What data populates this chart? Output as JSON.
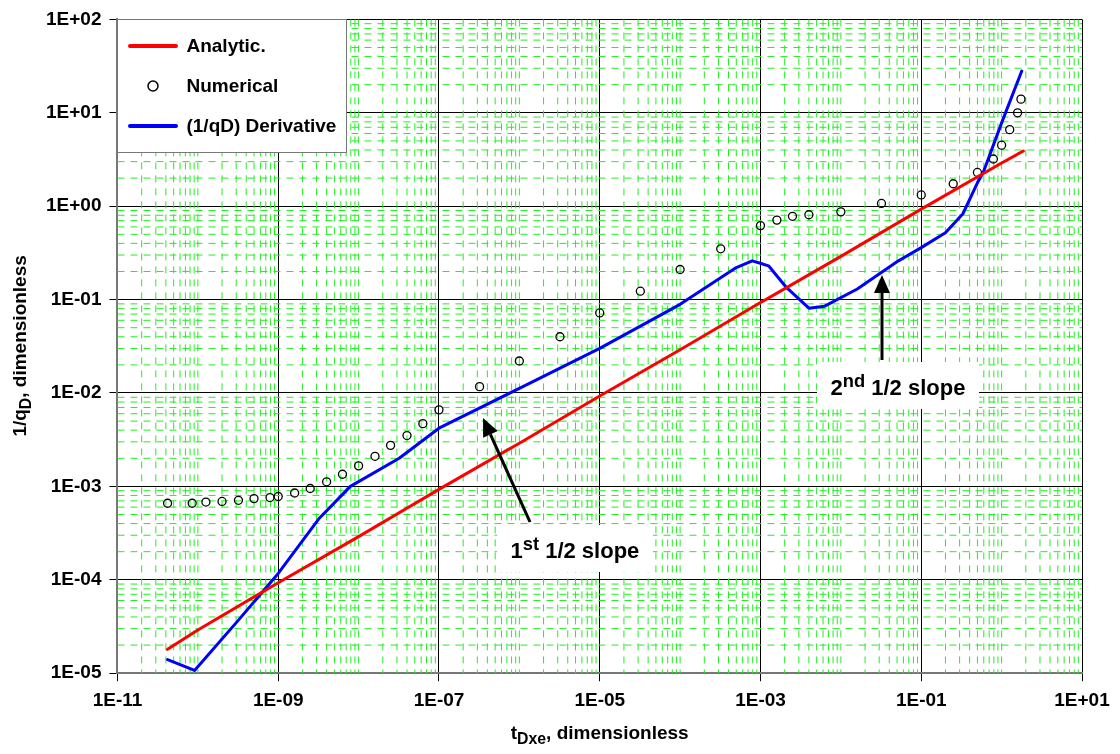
{
  "chart_data": {
    "type": "line",
    "xlabel": "t$_{Dxe}$, dimensionless",
    "ylabel": "1/q$_{D}$, dimensionless",
    "log": "xy",
    "grid": true,
    "legend": "top left",
    "xlim": [
      1e-11,
      10
    ],
    "ylim": [
      1e-05,
      100
    ],
    "xticks": [
      {
        "value": 1e-11,
        "label": "1E-11"
      },
      {
        "value": 1e-09,
        "label": "1E-09"
      },
      {
        "value": 1e-07,
        "label": "1E-07"
      },
      {
        "value": 1e-05,
        "label": "1E-05"
      },
      {
        "value": 0.001,
        "label": "1E-03"
      },
      {
        "value": 0.1,
        "label": "1E-01"
      },
      {
        "value": 10,
        "label": "1E+01"
      }
    ],
    "yticks": [
      {
        "value": 1e-05,
        "label": "1E-05"
      },
      {
        "value": 0.0001,
        "label": "1E-04"
      },
      {
        "value": 0.001,
        "label": "1E-03"
      },
      {
        "value": 0.01,
        "label": "1E-02"
      },
      {
        "value": 0.1,
        "label": "1E-01"
      },
      {
        "value": 1,
        "label": "1E+00"
      },
      {
        "value": 10,
        "label": "1E+01"
      },
      {
        "value": 100,
        "label": "1E+02"
      }
    ],
    "series": [
      {
        "name": "Analytic.",
        "type": "line",
        "marker": "none",
        "line_style": "solid",
        "color": "#ff0000",
        "x": [
          4.2e-11,
          1e-10,
          1e-09,
          1e-08,
          1e-07,
          1e-06,
          1e-05,
          0.0001,
          0.001,
          0.01,
          0.1,
          1,
          1.86
        ],
        "values": [
          1.8e-05,
          2.9e-05,
          9.3e-05,
          0.00029,
          0.00093,
          0.0029,
          0.0093,
          0.029,
          0.093,
          0.29,
          0.93,
          2.9,
          3.9
        ]
      },
      {
        "name": "Numerical",
        "type": "scatter",
        "marker": "circle",
        "color": "#000000",
        "x": [
          4.2e-11,
          8.5e-11,
          1.26e-10,
          2e-10,
          3.2e-10,
          5e-10,
          7.9e-10,
          1e-09,
          1.6e-09,
          2.5e-09,
          4e-09,
          6.3e-09,
          1e-08,
          1.6e-08,
          2.5e-08,
          4e-08,
          6.3e-08,
          1e-07,
          3.2e-07,
          1e-06,
          3.2e-06,
          1e-05,
          3.2e-05,
          0.0001,
          0.00032,
          0.001,
          0.0016,
          0.0025,
          0.004,
          0.01,
          0.032,
          0.1,
          0.25,
          0.5,
          0.79,
          1.0,
          1.26,
          1.58,
          1.74
        ],
        "values": [
          0.00066,
          0.00066,
          0.00068,
          0.00069,
          0.00071,
          0.00074,
          0.00076,
          0.00078,
          0.00085,
          0.00095,
          0.00112,
          0.00135,
          0.00166,
          0.0021,
          0.00275,
          0.0035,
          0.0047,
          0.0066,
          0.0117,
          0.022,
          0.04,
          0.072,
          0.123,
          0.21,
          0.35,
          0.62,
          0.71,
          0.78,
          0.81,
          0.87,
          1.07,
          1.32,
          1.74,
          2.3,
          3.2,
          4.5,
          6.6,
          10,
          14
        ]
      },
      {
        "name": "(1/qD) Derivative",
        "type": "line",
        "marker": "none",
        "line_style": "solid",
        "color": "#0000ff",
        "x": [
          4.2e-11,
          9.1e-11,
          3.2e-10,
          1e-09,
          3.2e-09,
          7.9e-09,
          3.2e-08,
          1e-07,
          1e-06,
          1e-05,
          0.0001,
          0.0005,
          0.00079,
          0.00126,
          0.0021,
          0.004,
          0.0063,
          0.016,
          0.052,
          0.1,
          0.2,
          0.33,
          0.5,
          0.59,
          1.0,
          1.78
        ],
        "values": [
          1.4e-05,
          1.07e-05,
          3.7e-05,
          0.000117,
          0.00045,
          0.001,
          0.002,
          0.0042,
          0.0112,
          0.03,
          0.089,
          0.22,
          0.26,
          0.23,
          0.135,
          0.081,
          0.085,
          0.13,
          0.26,
          0.36,
          0.52,
          0.83,
          1.78,
          2.3,
          7.8,
          28
        ]
      }
    ],
    "annotations": [
      "1$^{st}$ 1/2 slope",
      "2$^{nd}$ 1/2 slope"
    ]
  }
}
